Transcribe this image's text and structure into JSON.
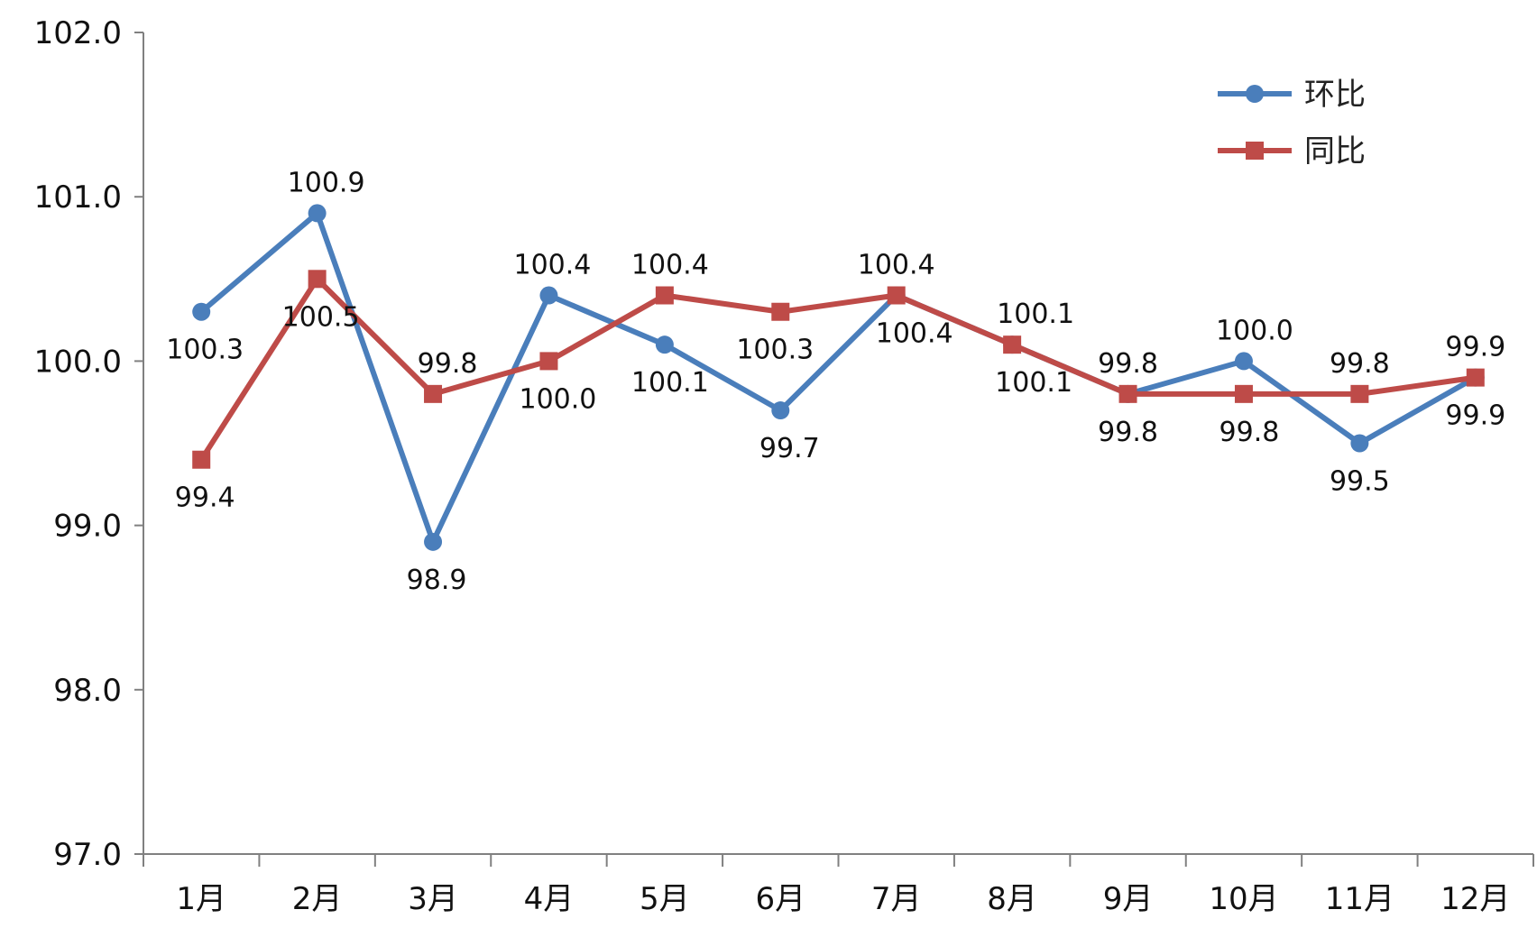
{
  "chart_data": {
    "type": "line",
    "categories": [
      "1月",
      "2月",
      "3月",
      "4月",
      "5月",
      "6月",
      "7月",
      "8月",
      "9月",
      "10月",
      "11月",
      "12月"
    ],
    "series": [
      {
        "name": "环比",
        "color": "#4a7ebb",
        "marker": "circle",
        "values": [
          100.3,
          100.9,
          98.9,
          100.4,
          100.1,
          99.7,
          100.4,
          100.1,
          99.8,
          100.0,
          99.5,
          99.9
        ],
        "labels": [
          "100.3",
          "100.9",
          "98.9",
          "100.4",
          "100.1",
          "99.7",
          "100.4",
          "100.1",
          "99.8",
          "100.0",
          "99.5",
          "99.9"
        ]
      },
      {
        "name": "同比",
        "color": "#be4b48",
        "marker": "square",
        "values": [
          99.4,
          100.5,
          99.8,
          100.0,
          100.4,
          100.3,
          100.4,
          100.1,
          99.8,
          99.8,
          99.8,
          99.9
        ],
        "labels": [
          "99.4",
          "100.5",
          "99.8",
          "100.0",
          "100.4",
          "100.3",
          "100.4",
          "100.1",
          "99.8",
          "99.8",
          "99.8",
          "99.9"
        ]
      }
    ],
    "yticks": [
      "102.0",
      "101.0",
      "100.0",
      "99.0",
      "98.0",
      "97.0"
    ],
    "ylim": [
      97.0,
      102.0
    ],
    "grid": false,
    "legend_position": "top-right"
  }
}
